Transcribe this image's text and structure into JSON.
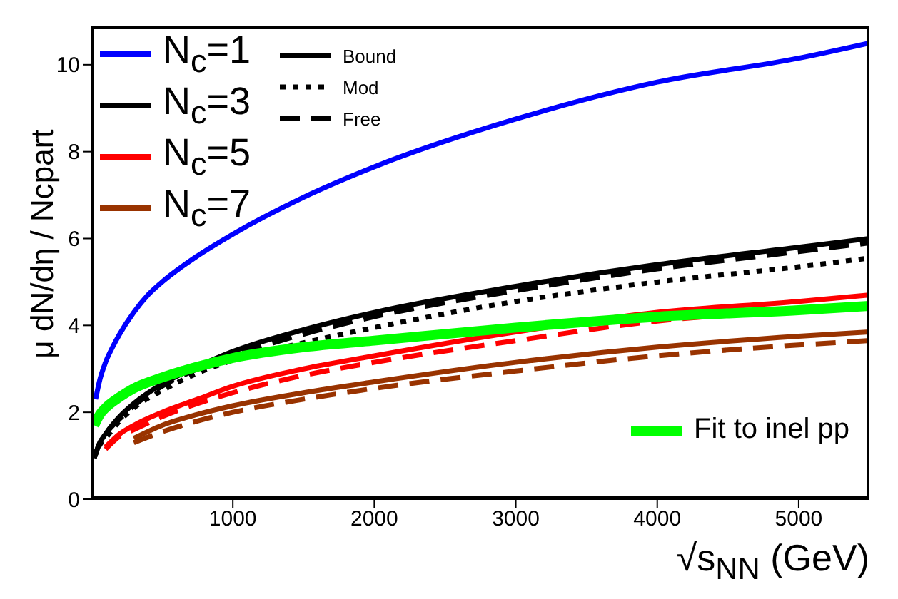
{
  "chart_data": {
    "type": "line",
    "xlabel": "√s$_{NN}$ (GeV)",
    "ylabel": "μ dN/dη / Ncpart",
    "xlim": [
      0,
      5500
    ],
    "ylim": [
      0,
      10.9
    ],
    "xticks": [
      1000,
      2000,
      3000,
      4000,
      5000
    ],
    "yticks": [
      0,
      2,
      4,
      6,
      8,
      10
    ],
    "legend": "top left",
    "marker": "none",
    "annotations": [
      "Bound"
    ],
    "series": [
      {
        "name": "N$_{c}$=1",
        "color": "#0000ff",
        "line_style": "solid",
        "x": [
          30,
          60,
          100,
          150,
          200,
          300,
          400,
          500,
          750,
          1000,
          1500,
          2000,
          3000,
          4000,
          5000,
          5500
        ],
        "values": [
          2.3,
          2.75,
          3.15,
          3.5,
          3.8,
          4.3,
          4.7,
          5.0,
          5.6,
          6.1,
          6.95,
          7.65,
          8.75,
          9.6,
          10.15,
          10.5
        ]
      },
      {
        "name": "N$_{c}$=3",
        "color": "#000000",
        "line_style": "solid",
        "x": [
          20,
          60,
          100,
          200,
          300,
          500,
          750,
          1000,
          1500,
          2000,
          3000,
          4000,
          5000,
          5500
        ],
        "values": [
          0.95,
          1.3,
          1.5,
          1.9,
          2.2,
          2.65,
          3.05,
          3.4,
          3.9,
          4.3,
          4.9,
          5.4,
          5.8,
          6.0
        ]
      },
      {
        "name": "Mod",
        "color": "#000000",
        "line_style": "dotted",
        "x": [
          20,
          60,
          100,
          200,
          300,
          500,
          750,
          1000,
          1500,
          2000,
          3000,
          4000,
          5000,
          5500
        ],
        "values": [
          0.95,
          1.25,
          1.4,
          1.8,
          2.1,
          2.5,
          2.9,
          3.2,
          3.6,
          3.95,
          4.55,
          5.0,
          5.35,
          5.55
        ]
      },
      {
        "name": "Free",
        "color": "#000000",
        "line_style": "dashed",
        "x": [
          20,
          60,
          100,
          200,
          300,
          500,
          750,
          1000,
          1500,
          2000,
          3000,
          4000,
          5000,
          5500
        ],
        "values": [
          0.95,
          1.3,
          1.5,
          1.85,
          2.15,
          2.6,
          3.0,
          3.3,
          3.8,
          4.2,
          4.8,
          5.3,
          5.7,
          5.9
        ]
      },
      {
        "name": "N$_{c}$=5",
        "color": "#ff0000",
        "line_style": "solid",
        "x": [
          100,
          200,
          300,
          500,
          750,
          1000,
          1500,
          2000,
          3000,
          4000,
          5000,
          5500
        ],
        "values": [
          1.2,
          1.5,
          1.7,
          2.0,
          2.3,
          2.6,
          3.0,
          3.3,
          3.85,
          4.3,
          4.55,
          4.7
        ]
      },
      {
        "color": "#ff0000",
        "line_style": "dashed",
        "x": [
          100,
          200,
          300,
          500,
          750,
          1000,
          1500,
          2000,
          3000,
          4000,
          5000,
          5500
        ],
        "values": [
          1.15,
          1.45,
          1.6,
          1.9,
          2.2,
          2.45,
          2.85,
          3.15,
          3.65,
          4.1,
          4.35,
          4.5
        ]
      },
      {
        "name": "N$_{c}$=7",
        "color": "#993300",
        "line_style": "solid",
        "x": [
          300,
          500,
          750,
          1000,
          1500,
          2000,
          3000,
          4000,
          5000,
          5500
        ],
        "values": [
          1.4,
          1.7,
          1.95,
          2.15,
          2.45,
          2.7,
          3.15,
          3.5,
          3.75,
          3.85
        ]
      },
      {
        "color": "#993300",
        "line_style": "dashed",
        "x": [
          300,
          500,
          750,
          1000,
          1500,
          2000,
          3000,
          4000,
          5000,
          5500
        ],
        "values": [
          1.3,
          1.55,
          1.8,
          2.0,
          2.3,
          2.55,
          2.95,
          3.3,
          3.55,
          3.65
        ]
      },
      {
        "name": "Fit to inel pp",
        "color": "#00ff00",
        "line_style": "solid",
        "x": [
          20,
          60,
          100,
          200,
          300,
          500,
          750,
          1000,
          1500,
          2000,
          3000,
          4000,
          5000,
          5500
        ],
        "values": [
          1.7,
          1.95,
          2.1,
          2.35,
          2.55,
          2.8,
          3.05,
          3.25,
          3.5,
          3.65,
          3.95,
          4.2,
          4.35,
          4.45
        ]
      }
    ]
  }
}
